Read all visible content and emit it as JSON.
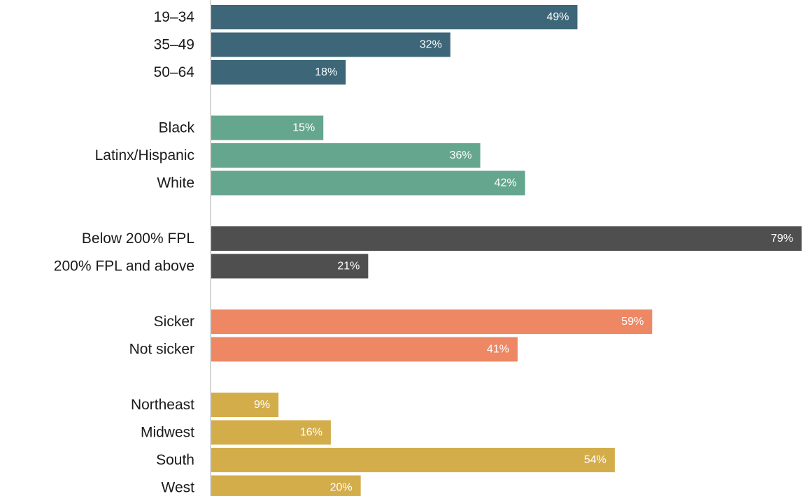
{
  "chart_data": {
    "type": "bar",
    "orientation": "horizontal",
    "xlim": [
      0,
      79
    ],
    "grid": false,
    "legend": "none",
    "value_suffix": "%",
    "groups": [
      {
        "color": "#3d6679",
        "categories": [
          "19–34",
          "35–49",
          "50–64"
        ],
        "values": [
          49,
          32,
          18
        ]
      },
      {
        "color": "#65a68f",
        "categories": [
          "Black",
          "Latinx/Hispanic",
          "White"
        ],
        "values": [
          15,
          36,
          42
        ]
      },
      {
        "color": "#4f4f4f",
        "categories": [
          "Below 200% FPL",
          "200% FPL and above"
        ],
        "values": [
          79,
          21
        ]
      },
      {
        "color": "#ee8864",
        "categories": [
          "Sicker",
          "Not sicker"
        ],
        "values": [
          59,
          41
        ]
      },
      {
        "color": "#d4ad4b",
        "categories": [
          "Northeast",
          "Midwest",
          "South",
          "West"
        ],
        "values": [
          9,
          16,
          54,
          20
        ]
      }
    ]
  }
}
